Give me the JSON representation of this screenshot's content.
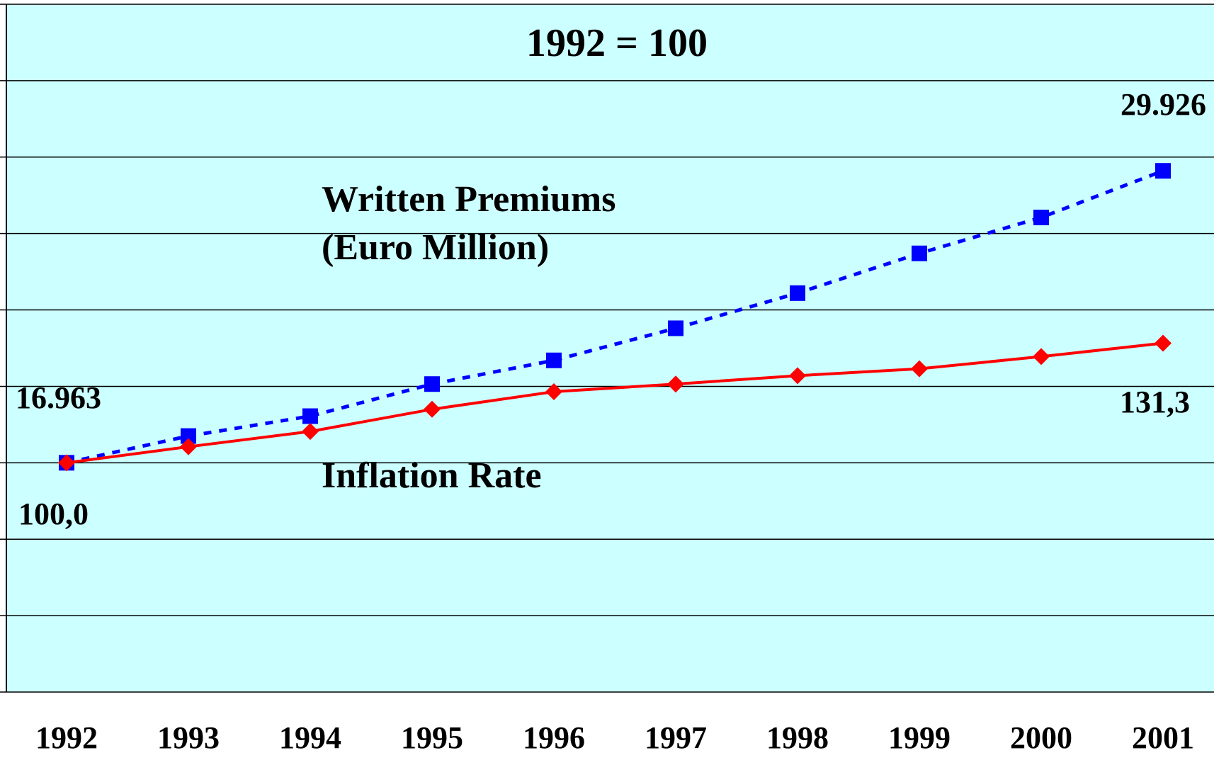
{
  "chart_data": {
    "type": "line",
    "title": "1992 = 100",
    "categories": [
      "1992",
      "1993",
      "1994",
      "1995",
      "1996",
      "1997",
      "1998",
      "1999",
      "2000",
      "2001"
    ],
    "series": [
      {
        "name": "Written Premiums",
        "color": "#0000ff",
        "style": "dotted",
        "marker": "square",
        "values": [
          100,
          107,
          112.2,
          120.6,
          126.8,
          135.2,
          144.4,
          154.8,
          164.2,
          176.4
        ]
      },
      {
        "name": "Inflation Rate",
        "color": "#ff0000",
        "style": "solid",
        "marker": "diamond",
        "values": [
          100,
          104.2,
          108.2,
          114,
          118.6,
          120.6,
          122.8,
          124.6,
          127.8,
          131.3
        ]
      }
    ],
    "annotations": [
      "(Euro Million)",
      "16.963",
      "29.926",
      "100,0",
      "131,3"
    ],
    "ylim": [
      40,
      220
    ],
    "yticks": [
      40,
      60,
      80,
      100,
      120,
      140,
      160,
      180,
      200,
      220
    ],
    "grid": true,
    "background": "#ccffff"
  }
}
